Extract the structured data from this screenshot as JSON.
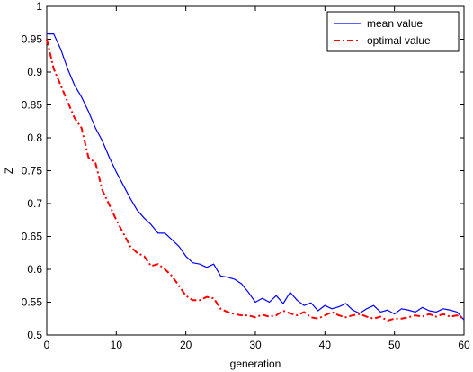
{
  "chart_data": {
    "type": "line",
    "title": "",
    "xlabel": "generation",
    "ylabel": "Z",
    "xlim": [
      0,
      60
    ],
    "ylim": [
      0.5,
      1.0
    ],
    "xticks": [
      0,
      10,
      20,
      30,
      40,
      50,
      60
    ],
    "yticks": [
      0.5,
      0.55,
      0.6,
      0.65,
      0.7,
      0.75,
      0.8,
      0.85,
      0.9,
      0.95,
      1
    ],
    "xtick_labels": [
      "0",
      "10",
      "20",
      "30",
      "40",
      "50",
      "60"
    ],
    "ytick_labels": [
      "0.5",
      "0.55",
      "0.6",
      "0.65",
      "0.7",
      "0.75",
      "0.8",
      "0.85",
      "0.9",
      "0.95",
      "1"
    ],
    "grid": false,
    "legend_position": "top-right",
    "x": [
      0,
      1,
      2,
      3,
      4,
      5,
      6,
      7,
      8,
      9,
      10,
      11,
      12,
      13,
      14,
      15,
      16,
      17,
      18,
      19,
      20,
      21,
      22,
      23,
      24,
      25,
      26,
      27,
      28,
      29,
      30,
      31,
      32,
      33,
      34,
      35,
      36,
      37,
      38,
      39,
      40,
      41,
      42,
      43,
      44,
      45,
      46,
      47,
      48,
      49,
      50,
      51,
      52,
      53,
      54,
      55,
      56,
      57,
      58,
      59,
      60
    ],
    "series": [
      {
        "name": "mean value",
        "color": "#0000ff",
        "style": "solid",
        "values": [
          0.958,
          0.958,
          0.935,
          0.905,
          0.88,
          0.862,
          0.84,
          0.815,
          0.795,
          0.77,
          0.748,
          0.728,
          0.708,
          0.69,
          0.678,
          0.668,
          0.655,
          0.655,
          0.645,
          0.635,
          0.62,
          0.61,
          0.608,
          0.603,
          0.608,
          0.59,
          0.588,
          0.585,
          0.578,
          0.565,
          0.55,
          0.556,
          0.55,
          0.56,
          0.548,
          0.565,
          0.553,
          0.545,
          0.549,
          0.537,
          0.545,
          0.54,
          0.543,
          0.548,
          0.538,
          0.533,
          0.54,
          0.545,
          0.535,
          0.538,
          0.532,
          0.54,
          0.538,
          0.535,
          0.542,
          0.537,
          0.535,
          0.54,
          0.538,
          0.535,
          0.523
        ]
      },
      {
        "name": "optimal value",
        "color": "#ff0000",
        "style": "dashdot",
        "values": [
          0.95,
          0.905,
          0.88,
          0.855,
          0.83,
          0.815,
          0.77,
          0.762,
          0.72,
          0.698,
          0.675,
          0.655,
          0.635,
          0.625,
          0.62,
          0.605,
          0.608,
          0.6,
          0.59,
          0.575,
          0.56,
          0.553,
          0.553,
          0.558,
          0.556,
          0.54,
          0.535,
          0.532,
          0.53,
          0.53,
          0.527,
          0.531,
          0.528,
          0.53,
          0.537,
          0.533,
          0.53,
          0.535,
          0.527,
          0.525,
          0.53,
          0.535,
          0.53,
          0.527,
          0.53,
          0.532,
          0.528,
          0.525,
          0.528,
          0.522,
          0.525,
          0.525,
          0.527,
          0.53,
          0.528,
          0.532,
          0.528,
          0.532,
          0.528,
          0.53,
          0.525
        ]
      }
    ]
  }
}
